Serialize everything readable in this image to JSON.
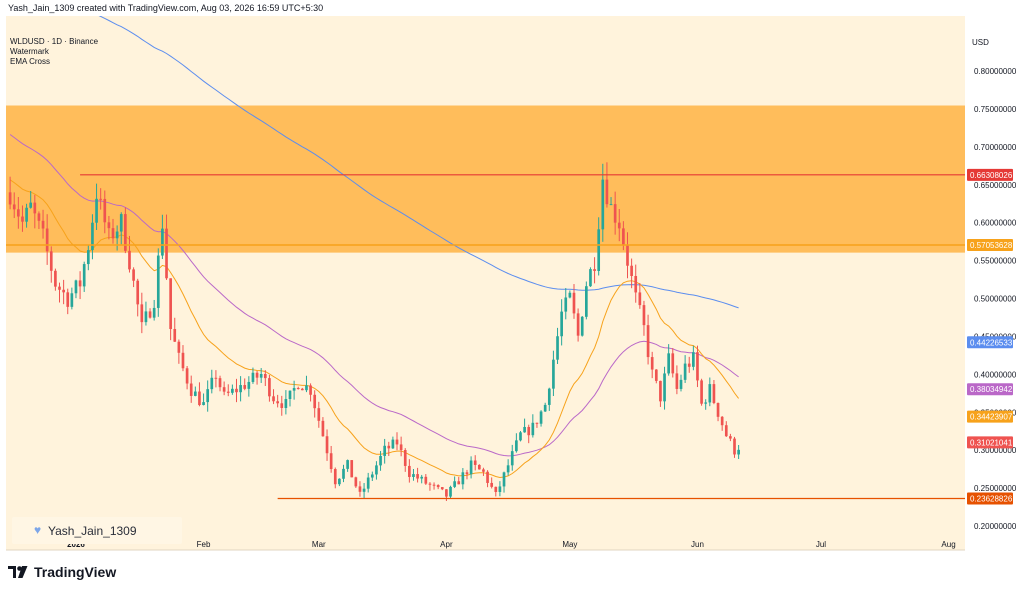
{
  "header": {
    "title": "Yash_Jain_1309 created with TradingView.com, Aug 03, 2026 16:59 UTC+5:30"
  },
  "legend": {
    "symbol": "WLDUSD · 1D · Binance",
    "items": [
      "Watermark",
      "EMA Cross"
    ]
  },
  "watermark": {
    "text": "Yash_Jain_1309",
    "icon": "heart-icon"
  },
  "price_scale": {
    "currency": "USD"
  },
  "footer": {
    "logo_text": "TradingView",
    "icon": "tradingview-logo-icon"
  },
  "colors": {
    "background": "#fff3dc",
    "zone": "#ffb74d",
    "up": "#26a69a",
    "down": "#ef5350",
    "ema_fast": "#f7a21b",
    "ema_mid": "#ba68c8",
    "ema_slow": "#5b8def",
    "resistance_line": "#e53935",
    "support_line": "#e65100"
  },
  "chart_data": {
    "type": "candlestick",
    "ylim": [
      0.18,
      0.82
    ],
    "x_axis_labels": [
      "2026",
      "Feb",
      "Mar",
      "Apr",
      "May",
      "Jun",
      "Jul",
      "Aug"
    ],
    "x_axis_label_days": [
      0,
      31,
      59,
      90,
      120,
      151,
      181,
      212
    ],
    "y_ticks": [
      0.2,
      0.25,
      0.3,
      0.35,
      0.4,
      0.45,
      0.5,
      0.55,
      0.6,
      0.65,
      0.7,
      0.75,
      0.8
    ],
    "y_tick_labels": [
      "0.20000000",
      "0.25000000",
      "0.30000000",
      "0.35000000",
      "0.40000000",
      "0.45000000",
      "0.50000000",
      "0.55000000",
      "0.60000000",
      "0.65000000",
      "0.70000000",
      "0.75000000",
      "0.80000000"
    ],
    "zone": {
      "from": 0.5605,
      "to": 0.7545
    },
    "horizontal_lines": [
      {
        "price": 0.66308026,
        "label": "0.66308026",
        "role": "resistance"
      },
      {
        "price": 0.57053628,
        "label": "0.57053628",
        "role": "zone"
      },
      {
        "price": 0.23628826,
        "label": "0.23628826",
        "role": "support"
      }
    ],
    "price_labels": [
      {
        "value": 0.44226533,
        "label": "0.44226533",
        "series": "ema_slow"
      },
      {
        "value": 0.38034942,
        "label": "0.38034942",
        "series": "ema_mid"
      },
      {
        "value": 0.34423907,
        "label": "0.34423907",
        "series": "ema_fast"
      },
      {
        "value": 0.31021041,
        "label": "0.31021041",
        "series": "last_price"
      }
    ],
    "close_anchors": [
      [
        -16,
        0.64
      ],
      [
        -13,
        0.6
      ],
      [
        -11,
        0.62
      ],
      [
        -8,
        0.58
      ],
      [
        -5,
        0.52
      ],
      [
        -2,
        0.5
      ],
      [
        1,
        0.52
      ],
      [
        3,
        0.57
      ],
      [
        5,
        0.64
      ],
      [
        8,
        0.58
      ],
      [
        11,
        0.6
      ],
      [
        13,
        0.55
      ],
      [
        16,
        0.46
      ],
      [
        19,
        0.5
      ],
      [
        21,
        0.6
      ],
      [
        23,
        0.46
      ],
      [
        25,
        0.42
      ],
      [
        28,
        0.38
      ],
      [
        31,
        0.36
      ],
      [
        34,
        0.4
      ],
      [
        36,
        0.37
      ],
      [
        39,
        0.38
      ],
      [
        42,
        0.39
      ],
      [
        45,
        0.4
      ],
      [
        48,
        0.37
      ],
      [
        51,
        0.36
      ],
      [
        54,
        0.39
      ],
      [
        57,
        0.38
      ],
      [
        60,
        0.32
      ],
      [
        63,
        0.26
      ],
      [
        66,
        0.28
      ],
      [
        69,
        0.24
      ],
      [
        72,
        0.27
      ],
      [
        75,
        0.3
      ],
      [
        78,
        0.31
      ],
      [
        81,
        0.27
      ],
      [
        84,
        0.26
      ],
      [
        87,
        0.25
      ],
      [
        90,
        0.24
      ],
      [
        93,
        0.26
      ],
      [
        96,
        0.28
      ],
      [
        99,
        0.27
      ],
      [
        102,
        0.24
      ],
      [
        105,
        0.28
      ],
      [
        108,
        0.32
      ],
      [
        111,
        0.33
      ],
      [
        114,
        0.36
      ],
      [
        116,
        0.42
      ],
      [
        118,
        0.48
      ],
      [
        120,
        0.5
      ],
      [
        122,
        0.45
      ],
      [
        124,
        0.52
      ],
      [
        126,
        0.55
      ],
      [
        128,
        0.66
      ],
      [
        130,
        0.62
      ],
      [
        132,
        0.6
      ],
      [
        134,
        0.55
      ],
      [
        136,
        0.5
      ],
      [
        138,
        0.46
      ],
      [
        140,
        0.4
      ],
      [
        142,
        0.37
      ],
      [
        144,
        0.42
      ],
      [
        146,
        0.38
      ],
      [
        148,
        0.41
      ],
      [
        150,
        0.42
      ],
      [
        152,
        0.36
      ],
      [
        154,
        0.38
      ],
      [
        156,
        0.35
      ],
      [
        158,
        0.32
      ],
      [
        160,
        0.3
      ],
      [
        162,
        0.31
      ]
    ],
    "candle_count": 178,
    "emas": {
      "ema_fast": {
        "name": "EMA Cross"
      },
      "ema_mid": {},
      "ema_slow": {}
    }
  }
}
